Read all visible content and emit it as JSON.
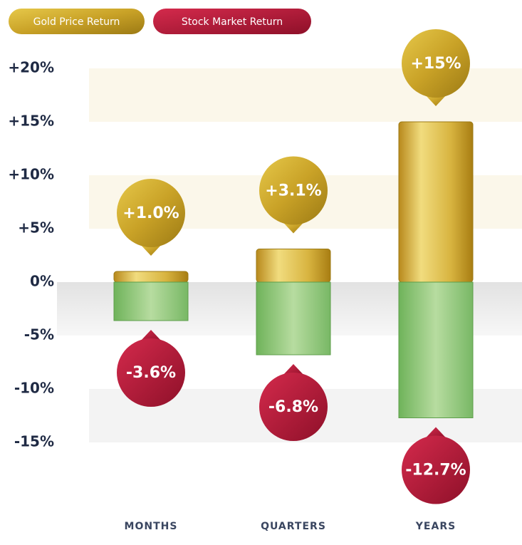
{
  "chart_data": {
    "type": "bar",
    "categories": [
      "MONTHS",
      "QUARTERS",
      "YEARS"
    ],
    "series": [
      {
        "name": "Gold Price Return",
        "color": "#c9a227",
        "values": [
          1.0,
          3.1,
          15
        ],
        "value_labels": [
          "+1.0%",
          "+3.1%",
          "+15%"
        ]
      },
      {
        "name": "Stock Market Return",
        "color": "#b8173a",
        "values": [
          -3.6,
          -6.8,
          -12.7
        ],
        "value_labels": [
          "-3.6%",
          "-6.8%",
          "-12.7%"
        ]
      }
    ],
    "ylim": [
      -20,
      20
    ],
    "yticks": [
      {
        "value": 20,
        "label": "+20%"
      },
      {
        "value": 15,
        "label": "+15%"
      },
      {
        "value": 10,
        "label": "+10%"
      },
      {
        "value": 5,
        "label": "+5%"
      },
      {
        "value": 0,
        "label": "0%"
      },
      {
        "value": -5,
        "label": "-5%"
      },
      {
        "value": -10,
        "label": "-10%"
      },
      {
        "value": -15,
        "label": "-15%"
      }
    ]
  }
}
